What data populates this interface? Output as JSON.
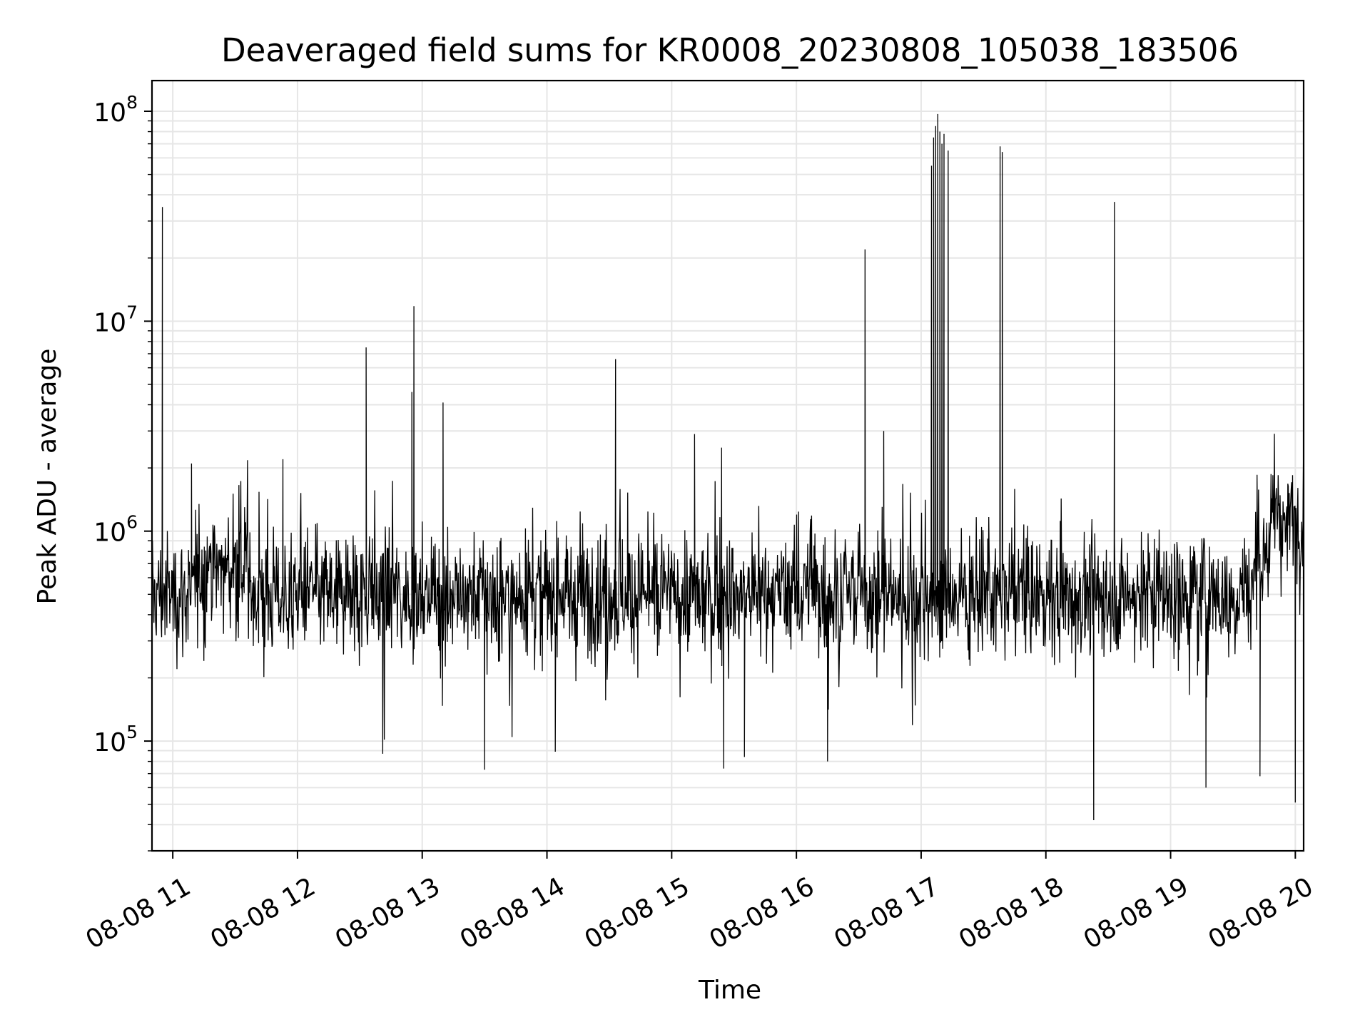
{
  "chart_data": {
    "type": "line",
    "title": "Deaveraged field sums for KR0008_20230808_105038_183506",
    "xlabel": "Time",
    "ylabel": "Peak ADU - average",
    "x_range": [
      "2023-08-08 10:50",
      "2023-08-08 20:04"
    ],
    "x_ticks": [
      {
        "label": "08-08 11",
        "hour": 11
      },
      {
        "label": "08-08 12",
        "hour": 12
      },
      {
        "label": "08-08 13",
        "hour": 13
      },
      {
        "label": "08-08 14",
        "hour": 14
      },
      {
        "label": "08-08 15",
        "hour": 15
      },
      {
        "label": "08-08 16",
        "hour": 16
      },
      {
        "label": "08-08 17",
        "hour": 17
      },
      {
        "label": "08-08 18",
        "hour": 18
      },
      {
        "label": "08-08 19",
        "hour": 19
      },
      {
        "label": "08-08 20",
        "hour": 20
      }
    ],
    "y_scale": "log",
    "ylim": [
      30000,
      140000000
    ],
    "y_ticks": [
      {
        "base": "10",
        "exp": "5",
        "value": 100000
      },
      {
        "base": "10",
        "exp": "6",
        "value": 1000000
      },
      {
        "base": "10",
        "exp": "7",
        "value": 10000000
      },
      {
        "base": "10",
        "exp": "8",
        "value": 100000000
      }
    ],
    "grid": true,
    "line_color": "#000000",
    "baseline_level": 500000,
    "spikes": [
      {
        "time": "10:55",
        "value": 35000000
      },
      {
        "time": "10:55",
        "value": 9800000
      },
      {
        "time": "11:09",
        "value": 2100000
      },
      {
        "time": "11:53",
        "value": 2200000
      },
      {
        "time": "12:33",
        "value": 7500000
      },
      {
        "time": "12:56",
        "value": 11800000
      },
      {
        "time": "12:55",
        "value": 4600000
      },
      {
        "time": "13:10",
        "value": 4100000
      },
      {
        "time": "14:33",
        "value": 6600000
      },
      {
        "time": "15:11",
        "value": 2900000
      },
      {
        "time": "15:24",
        "value": 2500000
      },
      {
        "time": "16:33",
        "value": 22000000
      },
      {
        "time": "16:42",
        "value": 3000000
      },
      {
        "time": "17:05",
        "value": 55000000
      },
      {
        "time": "17:06",
        "value": 75000000
      },
      {
        "time": "17:07",
        "value": 85000000
      },
      {
        "time": "17:08",
        "value": 97000000
      },
      {
        "time": "17:09",
        "value": 80000000
      },
      {
        "time": "17:10",
        "value": 70000000
      },
      {
        "time": "17:11",
        "value": 78000000
      },
      {
        "time": "17:13",
        "value": 65000000
      },
      {
        "time": "17:38",
        "value": 68000000
      },
      {
        "time": "17:39",
        "value": 64000000
      },
      {
        "time": "18:33",
        "value": 37000000
      },
      {
        "time": "20:04",
        "value": 2900000
      }
    ],
    "dips": [
      {
        "time": "18:23",
        "value": 42000
      },
      {
        "time": "20:00",
        "value": 51000
      },
      {
        "time": "19:17",
        "value": 60000
      },
      {
        "time": "19:43",
        "value": 68000
      },
      {
        "time": "13:30",
        "value": 73000
      },
      {
        "time": "15:25",
        "value": 74000
      },
      {
        "time": "15:35",
        "value": 84000
      },
      {
        "time": "16:15",
        "value": 80000
      },
      {
        "time": "12:41",
        "value": 87000
      },
      {
        "time": "14:04",
        "value": 89000
      }
    ]
  }
}
